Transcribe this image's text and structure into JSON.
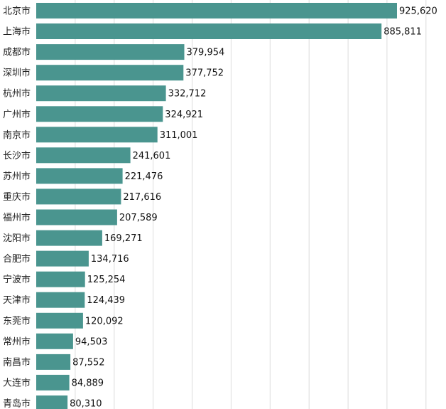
{
  "chart_data": {
    "type": "bar",
    "orientation": "horizontal",
    "bar_color": "#4a958f",
    "grid_color": "#dcdcdc",
    "grid": true,
    "xlim": [
      0,
      1000000
    ],
    "categories": [
      "北京市",
      "上海市",
      "成都市",
      "深圳市",
      "杭州市",
      "广州市",
      "南京市",
      "长沙市",
      "苏州市",
      "重庆市",
      "福州市",
      "沈阳市",
      "合肥市",
      "宁波市",
      "天津市",
      "东莞市",
      "常州市",
      "南昌市",
      "大连市",
      "青岛市"
    ],
    "values": [
      925620,
      885811,
      379954,
      377752,
      332712,
      324921,
      311001,
      241601,
      221476,
      217616,
      207589,
      169271,
      134716,
      125254,
      124439,
      120092,
      94503,
      87552,
      84889,
      80310
    ],
    "value_labels": [
      "925,620",
      "885,811",
      "379,954",
      "377,752",
      "332,712",
      "324,921",
      "311,001",
      "241,601",
      "221,476",
      "217,616",
      "207,589",
      "169,271",
      "134,716",
      "125,254",
      "124,439",
      "120,092",
      "94,503",
      "87,552",
      "84,889",
      "80,310"
    ]
  }
}
